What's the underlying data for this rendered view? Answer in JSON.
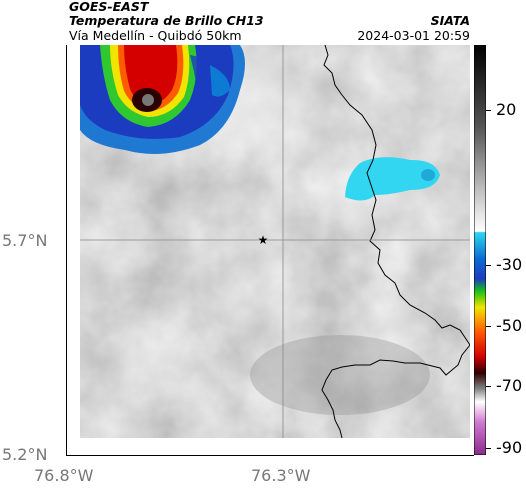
{
  "header": {
    "satellite": "GOES-EAST",
    "product": "Temperatura de Brillo CH13",
    "route": "Vía Medellín - Quibdó 50km",
    "org": "SIATA",
    "datetime": "2024-03-01 20:59"
  },
  "axes": {
    "lat_labels": [
      "5.7°N",
      "5.2°N"
    ],
    "lon_labels": [
      "76.8°W",
      "76.3°W"
    ]
  },
  "colorbar": {
    "ticks": [
      "20",
      "-30",
      "-50",
      "-70",
      "-90"
    ]
  },
  "marker": {
    "name": "star-marker",
    "lat": 5.7,
    "lon": -76.35
  },
  "colors": {
    "cloud_gray": "#b8b8b8",
    "cold_cyan": "#33d6f0",
    "border": "#000000"
  }
}
